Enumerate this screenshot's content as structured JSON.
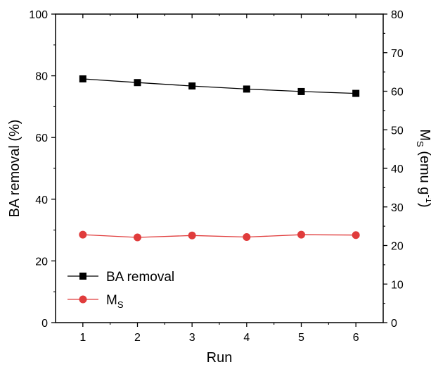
{
  "chart_data": {
    "type": "line",
    "x": [
      1,
      2,
      3,
      4,
      5,
      6
    ],
    "xlabel": "Run",
    "xlim": [
      0.5,
      6.5
    ],
    "xticks": [
      1,
      2,
      3,
      4,
      5,
      6
    ],
    "ylabel": "BA removal (%)",
    "ylim": [
      0,
      100
    ],
    "yticks": [
      0,
      20,
      40,
      60,
      80,
      100
    ],
    "y2label": {
      "base": "M",
      "sub": "S",
      "rest": " (emu g",
      "sup": "-1",
      "close": ")"
    },
    "y2lim": [
      0,
      80
    ],
    "y2ticks": [
      0,
      10,
      20,
      30,
      40,
      50,
      60,
      70,
      80
    ],
    "grid": false,
    "legend_position": "bottom-left",
    "series": [
      {
        "name": "BA removal",
        "axis": "left",
        "color": "#000000",
        "marker": "square",
        "values": [
          79.0,
          77.8,
          76.7,
          75.7,
          74.9,
          74.3
        ]
      },
      {
        "name": "Ms",
        "label": {
          "base": "M",
          "sub": "S"
        },
        "axis": "right",
        "color": "#e03c3c",
        "marker": "circle",
        "values": [
          22.8,
          22.1,
          22.6,
          22.2,
          22.8,
          22.7
        ]
      }
    ]
  }
}
